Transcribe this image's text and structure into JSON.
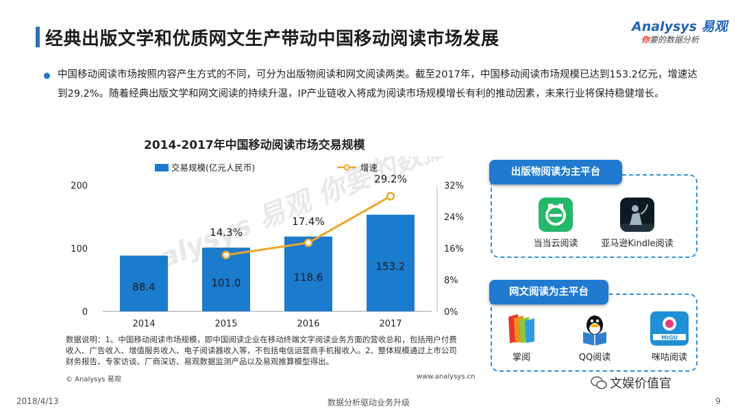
{
  "header": {
    "title": "经典出版文学和优质网文生产带动中国移动阅读市场发展",
    "logo_brand": "Analysys 易观",
    "logo_tagline_you": "你",
    "logo_tagline_rest": "要的数据分析"
  },
  "intro": {
    "text": "中国移动阅读市场按照内容产生方式的不同，可分为出版物阅读和网文阅读两类。截至2017年，中国移动阅读市场规模已达到153.2亿元，增速达到29.2%。随着经典出版文学和网文阅读的持续升温，IP产业链收入将成为阅读市场规模增长有利的推动因素，未来行业将保持稳健增长。"
  },
  "chart_data": {
    "type": "bar",
    "title": "2014-2017年中国移动阅读市场交易规模",
    "categories": [
      "2014",
      "2015",
      "2016",
      "2017"
    ],
    "series": [
      {
        "name": "交易规模(亿元人民币)",
        "type": "bar",
        "axis": "left",
        "values": [
          88.4,
          101.0,
          118.6,
          153.2
        ],
        "labels": [
          "88.4",
          "101.0",
          "118.6",
          "153.2"
        ]
      },
      {
        "name": "增速",
        "type": "line",
        "axis": "right",
        "values": [
          null,
          14.3,
          17.4,
          29.2
        ],
        "labels": [
          "",
          "14.3%",
          "17.4%",
          "29.2%"
        ]
      }
    ],
    "ylim_left": [
      0,
      200
    ],
    "yticks_left": [
      "0",
      "100",
      "200"
    ],
    "ylim_right": [
      0,
      32
    ],
    "yticks_right": [
      "0%",
      "8%",
      "16%",
      "24%",
      "32%"
    ],
    "legend": "top",
    "colors": {
      "bar": "#1b7bcd",
      "line": "#f0a52b"
    },
    "watermark": "Analysys 易观 你要的数据分析"
  },
  "chart_note": "数据说明：1、中国移动阅读市场规模，即中国阅读企业在移动终端文字阅读业务方面的营收总和，包括用户付费收入、广告收入、增值服务收入、电子阅读器收入等，不包括电信运营商手机报收入。2、整体规模通过上市公司财务报告、专家访谈、厂商深访、易观数据监测产品以及易观推算模型得出。",
  "chart_source_left": "© Analysys 易观",
  "chart_source_right": "www.analysys.cn",
  "publication_panel": {
    "label": "出版物阅读为主平台",
    "apps": [
      {
        "name": "当当云阅读",
        "icon": "dangdang-app-icon"
      },
      {
        "name": "亚马逊Kindle阅读",
        "icon": "kindle-app-icon"
      }
    ]
  },
  "web_panel": {
    "label": "网文阅读为主平台",
    "apps": [
      {
        "name": "掌阅",
        "icon": "ireader-app-icon"
      },
      {
        "name": "QQ阅读",
        "icon": "qq-reader-app-icon"
      },
      {
        "name": "咪咕阅读",
        "icon": "migu-app-icon",
        "icon_text": "MIGU"
      }
    ]
  },
  "footer": {
    "date": "2018/4/13",
    "center": "数据分析驱动业务升级",
    "page": "9",
    "wechat_account": "文娱价值官"
  }
}
